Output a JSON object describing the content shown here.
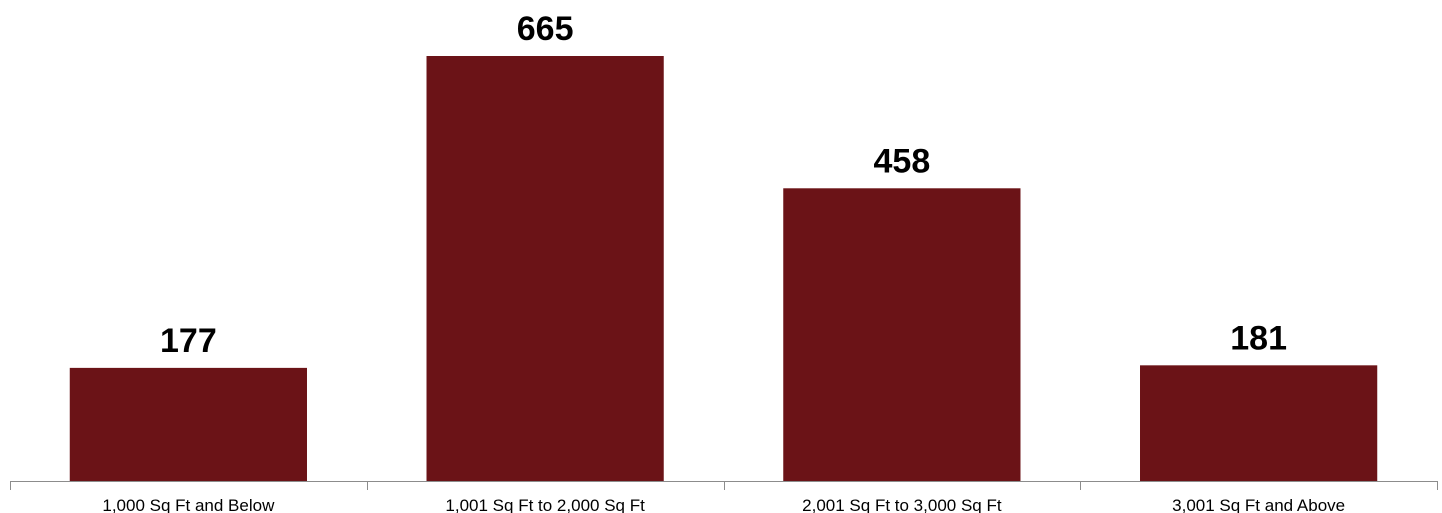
{
  "chart_data": {
    "type": "bar",
    "categories": [
      "1,000 Sq Ft and Below",
      "1,001 Sq Ft to 2,000 Sq Ft",
      "2,001 Sq Ft to 3,000 Sq Ft",
      "3,001 Sq Ft and Above"
    ],
    "values": [
      177,
      665,
      458,
      181
    ],
    "data_labels": [
      "177",
      "665",
      "458",
      "181"
    ],
    "title": "",
    "xlabel": "",
    "ylabel": "",
    "ylim": [
      0,
      700
    ],
    "grid": false,
    "legend": "none",
    "bar_color": "#6b1317"
  }
}
